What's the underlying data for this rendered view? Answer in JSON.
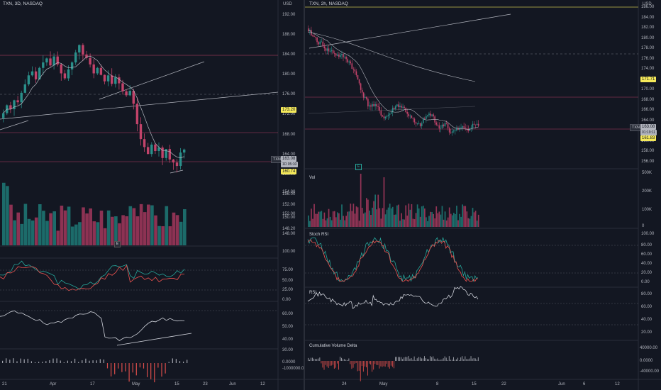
{
  "colors": {
    "background": "#131722",
    "bull": "#26a69a",
    "bear": "#ef5350",
    "bull_chart": "#2a8f8a",
    "bear_chart": "#c2436a",
    "line": "#b2b5be",
    "grid": "#2a2e39",
    "badge_yellow": "#f5e95a"
  },
  "left": {
    "title": "TXN, 3D, NASDAQ",
    "unit": "USD",
    "price_ticks": [
      "192.00",
      "188.00",
      "184.00",
      "180.00",
      "176.00",
      "172.00",
      "168.00",
      "164.00",
      "160.00",
      "156.00",
      "152.00",
      "148.00"
    ],
    "badges": {
      "upper": "173.20",
      "ticker": "TXN",
      "last": "163.08",
      "countdown": "1D 05:10",
      "lower": "160.74"
    },
    "volume_ticks": [
      "154.00",
      "152.00",
      "150.00",
      "148.20"
    ],
    "stoch_ticks": [
      "100.00",
      "75.00",
      "50.00",
      "25.00",
      "0.00"
    ],
    "rsi_ticks": [
      "60.00",
      "50.00",
      "40.00",
      "30.00"
    ],
    "cvd_ticks": [
      "0.0000",
      "-1000000.00"
    ],
    "time_labels": [
      "21",
      "Apr",
      "17",
      "May",
      "15",
      "23",
      "Jun",
      "12"
    ],
    "volume_badge_icon": "circle-badge-icon"
  },
  "right": {
    "title": "TXN, 2h, NASDAQ",
    "unit": "USD",
    "price_ticks": [
      "186.00",
      "184.00",
      "182.00",
      "180.00",
      "178.00",
      "176.00",
      "174.00",
      "172.00",
      "170.00",
      "168.00",
      "166.00",
      "164.00",
      "162.00",
      "160.00",
      "158.00",
      "156.00"
    ],
    "badges": {
      "upper": "171.71",
      "ticker": "TXN",
      "last": "163.08",
      "countdown": "01:19:11",
      "lower": "161.83"
    },
    "vol_label": "Vol",
    "vol_ticks": [
      "500K",
      "200K",
      "100K",
      "0"
    ],
    "stoch_label": "Stoch RSI",
    "stoch_ticks": [
      "100.00",
      "80.00",
      "60.00",
      "40.00",
      "20.00",
      "0.00"
    ],
    "rsi_label": "RSI",
    "rsi_ticks": [
      "80.00",
      "60.00",
      "40.00",
      "20.00"
    ],
    "cvd_label": "Cumulative Volume Delta",
    "cvd_ticks": [
      "40000.00",
      "0.0000",
      "-40000.00"
    ],
    "time_labels": [
      "24",
      "May",
      "8",
      "15",
      "22",
      "Jun",
      "6",
      "12"
    ],
    "earnings_marker": "E"
  },
  "chart_data": [
    {
      "type": "candlestick",
      "title": "TXN, 3D, NASDAQ",
      "ylim": [
        146,
        194
      ],
      "x_axis_labels": [
        "21",
        "Apr",
        "17",
        "May",
        "15",
        "23",
        "Jun",
        "12"
      ],
      "closes": [
        172.4,
        174.0,
        173.2,
        175.0,
        174.6,
        176.5,
        178.2,
        180.0,
        180.8,
        179.2,
        181.5,
        182.6,
        183.4,
        182.0,
        183.8,
        182.2,
        180.4,
        179.4,
        181.2,
        182.6,
        184.6,
        186.1,
        184.2,
        183.5,
        182.2,
        180.4,
        181.5,
        180.1,
        178.8,
        180.0,
        178.3,
        179.6,
        178.4,
        176.8,
        176.0,
        176.9,
        174.3,
        170.2,
        167.2,
        165.6,
        164.2,
        166.1,
        164.8,
        165.5,
        163.4,
        165.2,
        163.1,
        162.5,
        161.8,
        164.5,
        165.1
      ],
      "indicator_bands": {
        "stoch_rsi_range": [
          0,
          100
        ],
        "rsi_range": [
          30,
          60
        ]
      }
    },
    {
      "type": "candlestick",
      "title": "TXN, 2h, NASDAQ",
      "ylim": [
        155,
        187
      ],
      "x_axis_labels": [
        "24",
        "May",
        "8",
        "15",
        "22",
        "Jun",
        "6",
        "12"
      ],
      "last_price": 163.08,
      "levels": {
        "upper": 171.71,
        "lower": 161.83
      }
    }
  ]
}
